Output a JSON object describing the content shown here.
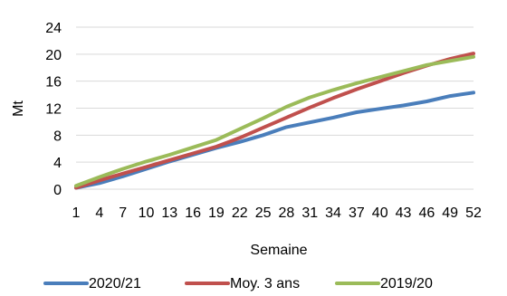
{
  "chart_data": {
    "type": "line",
    "title": "",
    "xlabel": "Semaine",
    "ylabel": "Mt",
    "ylim": [
      0,
      24
    ],
    "yticks": [
      0,
      4,
      8,
      12,
      16,
      20,
      24
    ],
    "xlim": [
      1,
      52
    ],
    "xticks": [
      1,
      4,
      7,
      10,
      13,
      16,
      19,
      22,
      25,
      28,
      31,
      34,
      37,
      40,
      43,
      46,
      49,
      52
    ],
    "grid": "horizontal",
    "legend_position": "bottom",
    "series": [
      {
        "name": "2020/21",
        "color": "#4a7ebb",
        "points": [
          [
            1,
            0.2
          ],
          [
            4,
            0.9
          ],
          [
            7,
            1.9
          ],
          [
            10,
            3.0
          ],
          [
            13,
            4.1
          ],
          [
            16,
            5.1
          ],
          [
            19,
            6.1
          ],
          [
            22,
            7.0
          ],
          [
            25,
            8.0
          ],
          [
            28,
            9.2
          ],
          [
            31,
            9.9
          ],
          [
            34,
            10.6
          ],
          [
            37,
            11.4
          ],
          [
            40,
            11.9
          ],
          [
            43,
            12.4
          ],
          [
            46,
            13.0
          ],
          [
            49,
            13.8
          ],
          [
            52,
            14.3
          ]
        ]
      },
      {
        "name": "Moy. 3 ans",
        "color": "#c0504d",
        "points": [
          [
            1,
            0.2
          ],
          [
            4,
            1.3
          ],
          [
            7,
            2.3
          ],
          [
            10,
            3.3
          ],
          [
            13,
            4.3
          ],
          [
            16,
            5.3
          ],
          [
            19,
            6.3
          ],
          [
            22,
            7.6
          ],
          [
            25,
            9.1
          ],
          [
            28,
            10.6
          ],
          [
            31,
            12.1
          ],
          [
            34,
            13.5
          ],
          [
            37,
            14.8
          ],
          [
            40,
            16.0
          ],
          [
            43,
            17.2
          ],
          [
            46,
            18.3
          ],
          [
            49,
            19.3
          ],
          [
            52,
            20.1
          ]
        ]
      },
      {
        "name": "2019/20",
        "color": "#9bbb59",
        "points": [
          [
            1,
            0.5
          ],
          [
            4,
            1.8
          ],
          [
            7,
            3.0
          ],
          [
            10,
            4.1
          ],
          [
            13,
            5.1
          ],
          [
            16,
            6.2
          ],
          [
            19,
            7.3
          ],
          [
            22,
            8.9
          ],
          [
            25,
            10.5
          ],
          [
            28,
            12.2
          ],
          [
            31,
            13.6
          ],
          [
            34,
            14.7
          ],
          [
            37,
            15.7
          ],
          [
            40,
            16.6
          ],
          [
            43,
            17.5
          ],
          [
            46,
            18.4
          ],
          [
            49,
            19.0
          ],
          [
            52,
            19.6
          ]
        ]
      }
    ]
  }
}
